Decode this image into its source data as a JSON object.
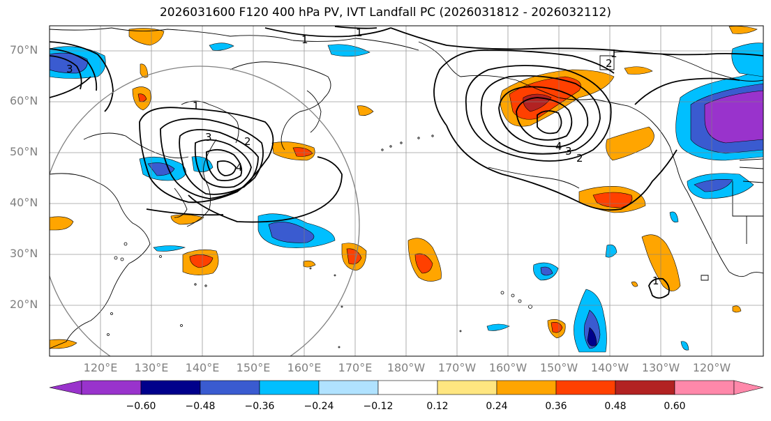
{
  "title": "2026031600 F120 400 hPa PV, IVT Landfall PC (2026031812 - 2026032112)",
  "lat_labels": [
    "70°N",
    "60°N",
    "50°N",
    "40°N",
    "30°N",
    "20°N"
  ],
  "lon_labels": [
    "120°E",
    "130°E",
    "140°E",
    "150°E",
    "160°E",
    "170°E",
    "180°W",
    "170°W",
    "160°W",
    "150°W",
    "140°W",
    "130°W",
    "120°W"
  ],
  "colorbar": {
    "ticks": [
      "−0.60",
      "−0.48",
      "−0.36",
      "−0.24",
      "−0.12",
      "0.12",
      "0.24",
      "0.36",
      "0.48",
      "0.60"
    ],
    "colors": [
      "#9933cc",
      "#00008b",
      "#3a5bd0",
      "#00bfff",
      "#b0e2ff",
      "#ffffff",
      "#ffe680",
      "#ffa500",
      "#ff4000",
      "#b22222",
      "#ff88aa"
    ]
  },
  "contour_labels": [
    "1",
    "1",
    "1",
    "1",
    "1",
    "2",
    "2",
    "2",
    "3",
    "3",
    "3",
    "4",
    "4"
  ]
}
